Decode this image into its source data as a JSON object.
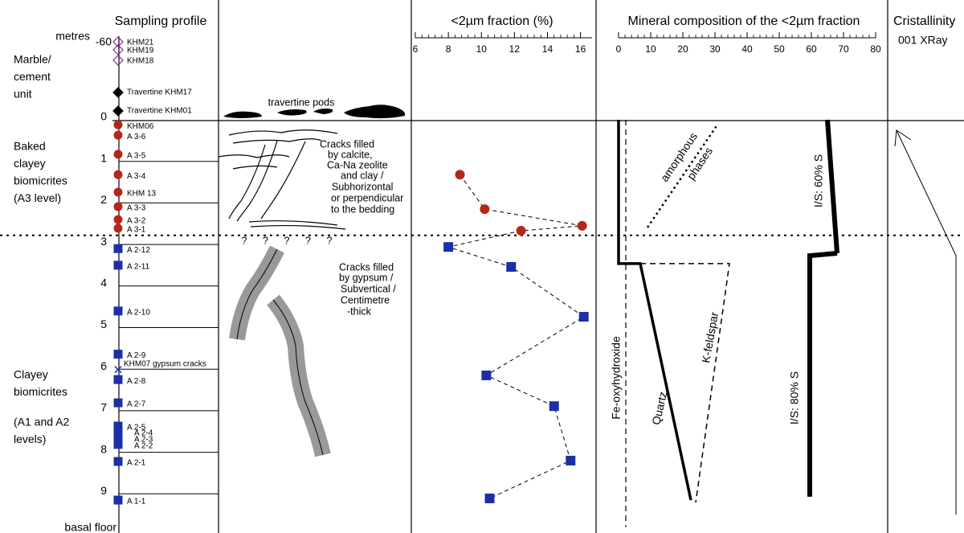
{
  "headers": {
    "sampling": "Sampling profile",
    "fraction": "<2µm fraction (%)",
    "mineral": "Mineral composition of the <2µm fraction",
    "crist": "Cristallinity",
    "crist_sub": "001 XRay"
  },
  "depth_axis": {
    "unit": "metres",
    "top_label": "-60",
    "ylim": [
      0,
      10
    ],
    "yticks": [
      0,
      1,
      2,
      3,
      4,
      5,
      6,
      7,
      8,
      9
    ],
    "boundary_depth": 2.78,
    "bottom_label": "basal floor"
  },
  "units": [
    {
      "lines": [
        "Marble/",
        "cement",
        "unit"
      ]
    },
    {
      "lines": [
        "Baked",
        "clayey",
        "biomicrites",
        "(A3 level)"
      ]
    },
    {
      "lines": [
        "Clayey",
        "biomicrites"
      ]
    },
    {
      "lines": [
        "(A1 and A2",
        "levels)"
      ]
    }
  ],
  "marker_colors": {
    "circle": "#b5271b",
    "square": "#1c2fa8",
    "cross": "#1c2fa8",
    "open-diamond": "#7b2d8e",
    "diamond": "#000000"
  },
  "upper_samples": [
    {
      "label": "KHM21",
      "marker": "open-diamond"
    },
    {
      "label": "KHM19",
      "marker": "open-diamond"
    },
    {
      "label": "KHM18",
      "marker": "open-diamond"
    },
    {
      "label": "Travertine KHM17",
      "marker": "diamond"
    },
    {
      "label": "Travertine KHM01",
      "marker": "diamond"
    }
  ],
  "samples": [
    {
      "label": "KHM06",
      "depth": 0.12,
      "marker": "circle"
    },
    {
      "label": "A 3-6",
      "depth": 0.37,
      "marker": "circle"
    },
    {
      "label": "A 3-5",
      "depth": 0.83,
      "marker": "circle"
    },
    {
      "label": "A 3-4",
      "depth": 1.32,
      "marker": "circle"
    },
    {
      "label": "KHM 13",
      "depth": 1.74,
      "marker": "circle"
    },
    {
      "label": "A 3-3",
      "depth": 2.09,
      "marker": "circle"
    },
    {
      "label": "A 3-2",
      "depth": 2.4,
      "marker": "circle"
    },
    {
      "label": "A 3-1",
      "depth": 2.61,
      "marker": "circle"
    },
    {
      "label": "A 2-12",
      "depth": 3.1,
      "marker": "square"
    },
    {
      "label": "A 2-11",
      "depth": 3.5,
      "marker": "square"
    },
    {
      "label": "A 2-10",
      "depth": 4.6,
      "marker": "square"
    },
    {
      "label": "A 2-9",
      "depth": 5.64,
      "marker": "square"
    },
    {
      "label": "KHM07 gypsum cracks",
      "depth": 6.01,
      "marker": "cross"
    },
    {
      "label": "A 2-8",
      "depth": 6.25,
      "marker": "square"
    },
    {
      "label": "A 2-7",
      "depth": 6.81,
      "marker": "square"
    },
    {
      "label": "A 2-5",
      "depth": 7.37,
      "marker": "square"
    },
    {
      "label": "A 2-4",
      "depth": 7.5,
      "marker": "square"
    },
    {
      "label": "A 2-3",
      "depth": 7.66,
      "marker": "square"
    },
    {
      "label": "A 2-2",
      "depth": 7.81,
      "marker": "square"
    },
    {
      "label": "A 2-1",
      "depth": 8.22,
      "marker": "square"
    },
    {
      "label": "A 1-1",
      "depth": 9.15,
      "marker": "square"
    }
  ],
  "sketch": {
    "pods": "travertine pods",
    "cracks_calcite": [
      "Cracks filled",
      "by calcite,",
      "Ca-Na zeolite",
      "and clay /",
      "Subhorizontal",
      "or perpendicular",
      "to the bedding"
    ],
    "unknown": [
      "?",
      "?",
      "?",
      "?",
      "?"
    ],
    "cracks_gypsum": [
      "Cracks filled",
      "by gypsum /",
      "Subvertical /",
      "Centimetre",
      "-thick"
    ]
  },
  "chart_data": [
    {
      "type": "scatter",
      "xlim": [
        6,
        16.7
      ],
      "xticks": [
        6,
        8,
        10,
        12,
        14,
        16
      ],
      "line_color": "#000000",
      "series": [
        {
          "marker": "circle",
          "color": "#b5271b",
          "depth": [
            1.32,
            2.15,
            2.55,
            2.67
          ],
          "values": [
            8.7,
            10.2,
            16.1,
            12.4
          ]
        },
        {
          "marker": "square",
          "color": "#1c2fa8",
          "depth": [
            3.06,
            3.54,
            4.74,
            6.15,
            6.89,
            8.2,
            9.11
          ],
          "values": [
            8.0,
            11.8,
            16.2,
            10.3,
            14.4,
            15.4,
            10.5
          ]
        }
      ]
    },
    {
      "type": "line",
      "xlim": [
        0,
        80
      ],
      "xticks": [
        0,
        10,
        20,
        30,
        40,
        50,
        60,
        70,
        80
      ],
      "lines": [
        {
          "label": [
            "Fe-oxyhydroxide"
          ],
          "style": "dashed",
          "width": 1.2,
          "x": [
            2.25,
            2.25
          ],
          "depth": [
            0,
            9.8
          ]
        },
        {
          "label": [
            "Quartz"
          ],
          "style": "solid",
          "width": 3.5,
          "x": [
            0,
            0,
            6.75,
            22.5
          ],
          "depth": [
            0,
            3.46,
            3.46,
            9.15
          ]
        },
        {
          "label": [
            "K-feldspar"
          ],
          "style": "dashed",
          "width": 1.5,
          "x": [
            6.75,
            34.5,
            24
          ],
          "depth": [
            3.46,
            3.46,
            9.21
          ]
        },
        {
          "label": [
            "amorphous",
            "phases"
          ],
          "style": "dotted",
          "width": 2.5,
          "x": [
            9,
            30.75
          ],
          "depth": [
            2.59,
            0.12
          ]
        },
        {
          "label": [
            "I/S: 60% S"
          ],
          "style": "solid",
          "width": 6,
          "x": [
            65,
            68
          ],
          "depth": [
            0,
            3.21
          ]
        },
        {
          "label": [
            "I/S: 80% S"
          ],
          "style": "solid",
          "width": 6,
          "x": [
            68,
            59.5,
            59.5
          ],
          "depth": [
            3.21,
            3.27,
            9.07
          ]
        }
      ]
    }
  ]
}
